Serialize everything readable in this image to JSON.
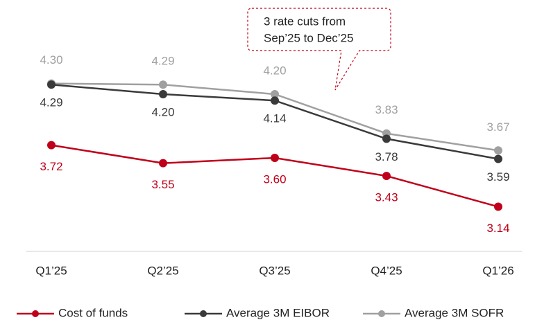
{
  "chart_data": {
    "type": "line",
    "categories": [
      "Q1’25",
      "Q2’25",
      "Q3’25",
      "Q4’25",
      "Q1’26"
    ],
    "series": [
      {
        "name": "Cost of funds",
        "color": "#c0001a",
        "values": [
          3.72,
          3.55,
          3.6,
          3.43,
          3.14
        ],
        "value_labels": [
          "3.72",
          "3.55",
          "3.60",
          "3.43",
          "3.14"
        ],
        "label_position": "below"
      },
      {
        "name": "Average 3M EIBOR",
        "color": "#3a3a3a",
        "values": [
          4.29,
          4.2,
          4.14,
          3.78,
          3.59
        ],
        "value_labels": [
          "4.29",
          "4.20",
          "4.14",
          "3.78",
          "3.59"
        ],
        "label_position": "below"
      },
      {
        "name": "Average 3M SOFR",
        "color": "#a0a0a0",
        "values": [
          4.3,
          4.29,
          4.2,
          3.83,
          3.67
        ],
        "value_labels": [
          "4.30",
          "4.29",
          "4.20",
          "3.83",
          "3.67"
        ],
        "label_position": "above"
      }
    ],
    "ylim": [
      2.7,
      5.1
    ],
    "annotation": [
      "3 rate cuts from",
      "Sep’25 to Dec’25"
    ],
    "legend": "bottom"
  }
}
